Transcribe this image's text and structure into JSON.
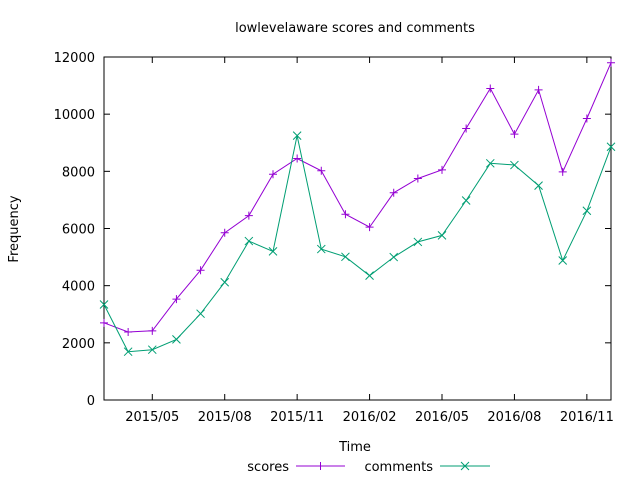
{
  "chart_data": {
    "type": "line",
    "title": "lowlevelaware scores and comments",
    "xlabel": "Time",
    "ylabel": "Frequency",
    "x": [
      "2015-03",
      "2015-04",
      "2015-05",
      "2015-06",
      "2015-07",
      "2015-08",
      "2015-09",
      "2015-10",
      "2015-11",
      "2015-12",
      "2016-01",
      "2016-02",
      "2016-03",
      "2016-04",
      "2016-05",
      "2016-06",
      "2016-07",
      "2016-08",
      "2016-09",
      "2016-10",
      "2016-11",
      "2016-12"
    ],
    "x_ticks": [
      {
        "label": "2015/05",
        "date": "2015-05"
      },
      {
        "label": "2015/08",
        "date": "2015-08"
      },
      {
        "label": "2015/11",
        "date": "2015-11"
      },
      {
        "label": "2016/02",
        "date": "2016-02"
      },
      {
        "label": "2016/05",
        "date": "2016-05"
      },
      {
        "label": "2016/08",
        "date": "2016-08"
      },
      {
        "label": "2016/11",
        "date": "2016-11"
      }
    ],
    "xlim": [
      "2015-03",
      "2016-12"
    ],
    "ylim": [
      0,
      12000
    ],
    "y_ticks": [
      0,
      2000,
      4000,
      6000,
      8000,
      10000,
      12000
    ],
    "grid": false,
    "legend": "bottom",
    "series": [
      {
        "name": "scores",
        "color": "#9400d3",
        "marker": "plus",
        "values": [
          2700,
          2380,
          2420,
          3530,
          4540,
          5850,
          6450,
          7900,
          8450,
          8020,
          6500,
          6050,
          7250,
          7750,
          8050,
          9500,
          10900,
          9300,
          10850,
          7980,
          9850,
          11800
        ]
      },
      {
        "name": "comments",
        "color": "#009e73",
        "marker": "cross",
        "values": [
          3340,
          1690,
          1760,
          2120,
          3020,
          4120,
          5560,
          5200,
          9250,
          5280,
          5010,
          4350,
          5000,
          5530,
          5760,
          6980,
          8280,
          8220,
          7500,
          4880,
          6620,
          8860
        ]
      }
    ]
  }
}
